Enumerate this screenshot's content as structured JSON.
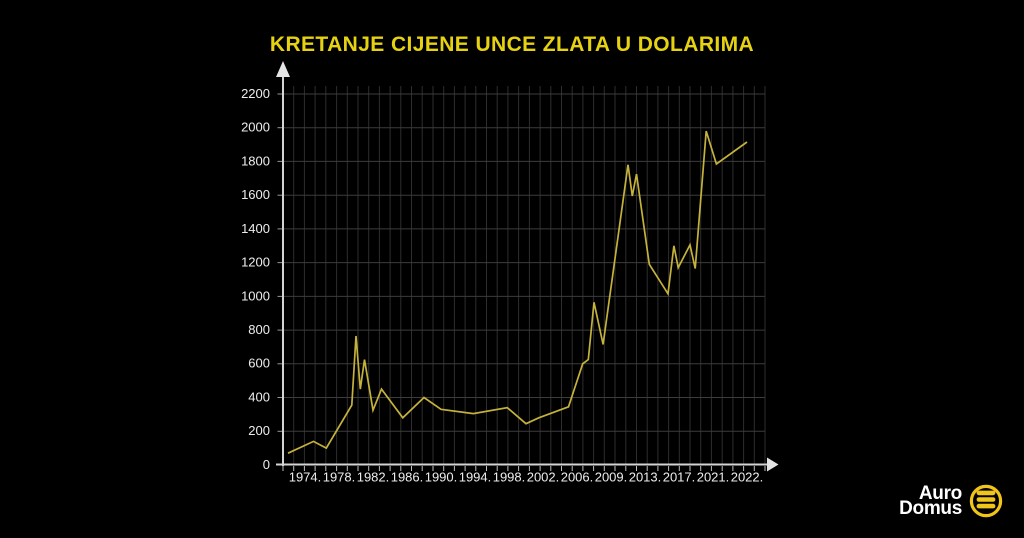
{
  "title": {
    "text": "KRETANJE CIJENE UNCE ZLATA U DOLARIMA",
    "color": "#e6d210"
  },
  "chart_data": {
    "type": "line",
    "title": "KRETANJE CIJENE UNCE ZLATA U DOLARIMA",
    "x_tick_labels": [
      "1974.",
      "1978.",
      "1982.",
      "1986.",
      "1990.",
      "1994.",
      "1998.",
      "2002.",
      "2006.",
      "2009.",
      "2013.",
      "2017.",
      "2021.",
      "2022."
    ],
    "x_tick_years": [
      1974,
      1978,
      1982,
      1986,
      1990,
      1994,
      1998,
      2002,
      2006,
      2009,
      2013,
      2017,
      2021,
      2022
    ],
    "y_ticks": [
      0,
      200,
      400,
      600,
      800,
      1000,
      1200,
      1400,
      1600,
      1800,
      2000,
      2200
    ],
    "ylim": [
      0,
      2200
    ],
    "grid": true,
    "legend": "none",
    "line_color": "#c5b23c",
    "axis_color": "#d4d4d4",
    "arrow_color": "#e4e4e4",
    "tick_color": "#c0c0c0",
    "label_color": "#ededed",
    "grid_color_vertical": "#2e2e2e",
    "grid_color_horizontal": "#3c3c3c",
    "points": [
      {
        "year": 1972,
        "value": 70
      },
      {
        "year": 1975,
        "value": 140
      },
      {
        "year": 1976.5,
        "value": 100
      },
      {
        "year": 1979.5,
        "value": 355
      },
      {
        "year": 1980,
        "value": 765
      },
      {
        "year": 1980.5,
        "value": 450
      },
      {
        "year": 1981,
        "value": 625
      },
      {
        "year": 1982,
        "value": 325
      },
      {
        "year": 1983,
        "value": 450
      },
      {
        "year": 1985.5,
        "value": 280
      },
      {
        "year": 1988,
        "value": 400
      },
      {
        "year": 1990,
        "value": 330
      },
      {
        "year": 1993.8,
        "value": 305
      },
      {
        "year": 1997.8,
        "value": 340
      },
      {
        "year": 2000,
        "value": 245
      },
      {
        "year": 2001.5,
        "value": 280
      },
      {
        "year": 2005,
        "value": 345
      },
      {
        "year": 2006.5,
        "value": 600
      },
      {
        "year": 2007,
        "value": 625
      },
      {
        "year": 2007.5,
        "value": 965
      },
      {
        "year": 2008.3,
        "value": 715
      },
      {
        "year": 2011,
        "value": 1780
      },
      {
        "year": 2011.5,
        "value": 1595
      },
      {
        "year": 2012,
        "value": 1725
      },
      {
        "year": 2013.5,
        "value": 1190
      },
      {
        "year": 2015.7,
        "value": 1015
      },
      {
        "year": 2016.4,
        "value": 1300
      },
      {
        "year": 2016.9,
        "value": 1170
      },
      {
        "year": 2018.3,
        "value": 1305
      },
      {
        "year": 2018.9,
        "value": 1165
      },
      {
        "year": 2020.2,
        "value": 1980
      },
      {
        "year": 2021.1,
        "value": 1785
      },
      {
        "year": 2022,
        "value": 1915
      }
    ]
  },
  "logo": {
    "line1": "Auro",
    "line2": "Domus",
    "icon": "gold-bars-circle-icon",
    "text_color": "#ffffff",
    "accent_color": "#f0c418"
  }
}
